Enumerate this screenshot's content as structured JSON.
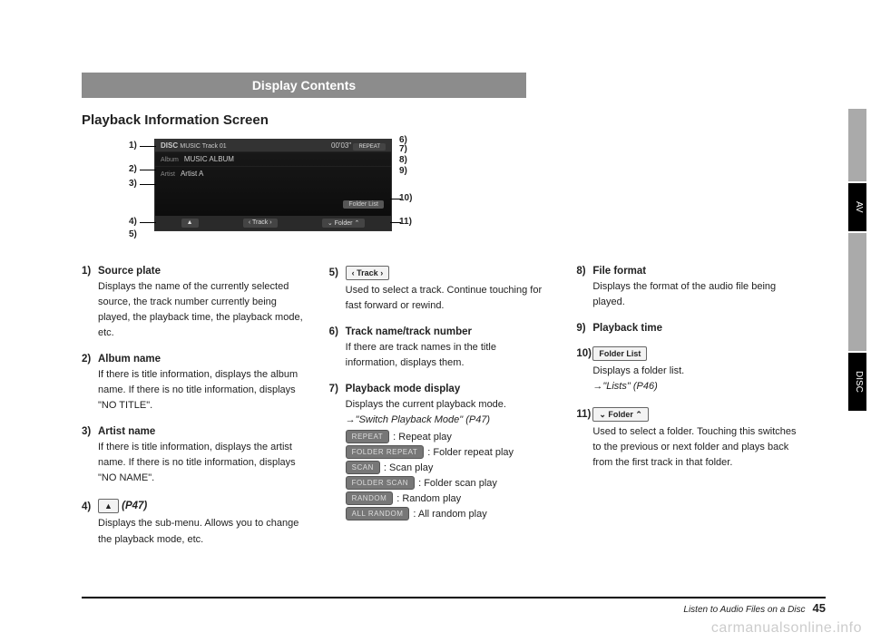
{
  "header": "Display Contents",
  "section_title": "Playback Information Screen",
  "screenshot": {
    "source": "DISC",
    "track_line": "MUSIC\nTrack 01",
    "time": "00'03\"",
    "album_label": "Album",
    "album": "MUSIC ALBUM",
    "artist_label": "Artist",
    "artist": "Artist A",
    "folder_list_btn": "Folder List",
    "menu_btn": "▲",
    "track_btn": "‹  Track  ›",
    "folder_btn": "⌄  Folder  ⌃",
    "repeat_btn": "REPEAT"
  },
  "callouts_left": [
    "1)",
    "2)",
    "3)",
    "4)",
    "5)"
  ],
  "callouts_right": [
    "6)",
    "7)",
    "8)",
    "9)",
    "10)",
    "11)"
  ],
  "items_col1": [
    {
      "num": "1)",
      "title": "Source plate",
      "body": "Displays the name of the currently selected source, the track number currently being played, the playback time, the playback mode, etc."
    },
    {
      "num": "2)",
      "title": "Album name",
      "body": " If there is title information, displays the album name. If there is no title information, displays \"NO TITLE\"."
    },
    {
      "num": "3)",
      "title": "Artist name",
      "body": "If there is title information, displays the artist name. If there is no title information, displays \"NO NAME\"."
    },
    {
      "num": "4)",
      "title_btn": "▲",
      "title_ref": "(P47)",
      "body": "Displays the sub-menu. Allows you to change the playback mode, etc."
    }
  ],
  "items_col2": [
    {
      "num": "5)",
      "title_btn": "‹ Track ›",
      "body": "Used to select a track. Continue touching for fast forward or rewind."
    },
    {
      "num": "6)",
      "title": "Track name/track number",
      "body": "If there are track names in the title information, displays them."
    },
    {
      "num": "7)",
      "title": "Playback mode display",
      "body": "Displays the current playback mode.",
      "ref": "→\"Switch Playback Mode\" (P47)",
      "modes": [
        {
          "btn": "REPEAT",
          "label": ": Repeat play"
        },
        {
          "btn": "FOLDER REPEAT",
          "label": ": Folder repeat play"
        },
        {
          "btn": "SCAN",
          "label": ": Scan play"
        },
        {
          "btn": "FOLDER SCAN",
          "label": ": Folder scan play"
        },
        {
          "btn": "RANDOM",
          "label": ": Random play"
        },
        {
          "btn": "ALL RANDOM",
          "label": ": All random play"
        }
      ]
    }
  ],
  "items_col3": [
    {
      "num": "8)",
      "title": "File format",
      "body": "Displays the format of the audio file being played."
    },
    {
      "num": "9)",
      "title": "Playback time"
    },
    {
      "num": "10)",
      "title_btn": "Folder List",
      "body": "Displays a folder list.",
      "ref": "→\"Lists\" (P46)"
    },
    {
      "num": "11)",
      "title_btn": "⌄ Folder ⌃",
      "body": "Used to select a folder. Touching this switches to the previous or next folder and plays back from the first track in that folder."
    }
  ],
  "side_tabs": [
    "AV",
    "DISC"
  ],
  "footer": {
    "text": "Listen to Audio Files on a Disc",
    "page": "45"
  },
  "watermark": "carmanualsonline.info"
}
